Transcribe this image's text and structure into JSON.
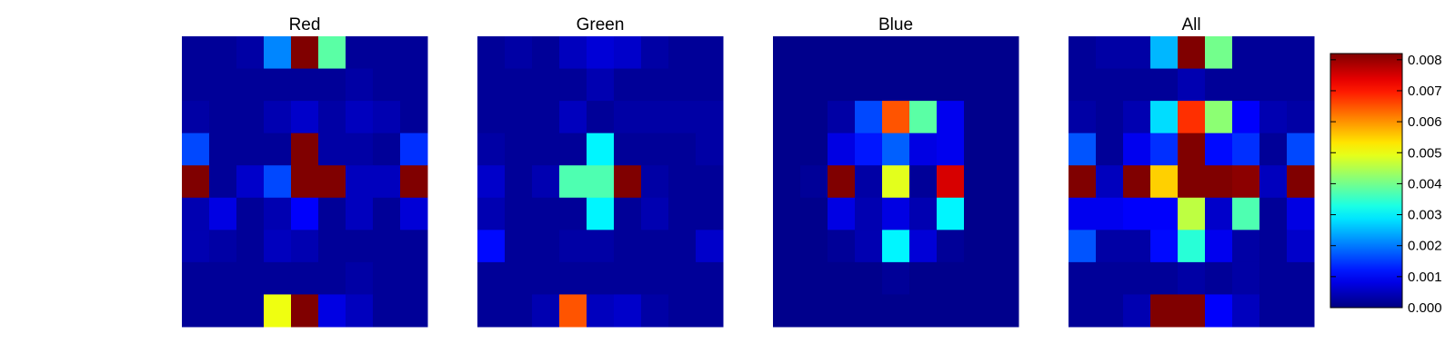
{
  "chart_data": {
    "type": "heatmap",
    "colormap": "jet",
    "colorbar": {
      "range": [
        0,
        0.0082
      ],
      "ticks": [
        "0.000",
        "0.001",
        "0.002",
        "0.003",
        "0.004",
        "0.005",
        "0.006",
        "0.007",
        "0.008"
      ]
    },
    "panels": [
      {
        "title": "Red",
        "values": [
          [
            0.0002,
            0.0002,
            0.0003,
            0.0021,
            0.0085,
            0.0038,
            0.0002,
            0.0002,
            0.0002
          ],
          [
            0.0002,
            0.0002,
            0.0002,
            0.0002,
            0.0002,
            0.0002,
            0.0003,
            0.0002,
            0.0002
          ],
          [
            0.0003,
            0.0002,
            0.0002,
            0.0004,
            0.0006,
            0.0003,
            0.0005,
            0.0004,
            0.0002
          ],
          [
            0.0016,
            0.0002,
            0.0002,
            0.0002,
            0.0085,
            0.0003,
            0.0003,
            0.0002,
            0.0014
          ],
          [
            0.0085,
            0.0002,
            0.0006,
            0.0016,
            0.0085,
            0.0085,
            0.0005,
            0.0005,
            0.0085
          ],
          [
            0.0004,
            0.0008,
            0.0002,
            0.0004,
            0.001,
            0.0002,
            0.0005,
            0.0002,
            0.0007
          ],
          [
            0.0004,
            0.0003,
            0.0002,
            0.0005,
            0.0004,
            0.0002,
            0.0002,
            0.0002,
            0.0002
          ],
          [
            0.0002,
            0.0002,
            0.0002,
            0.0002,
            0.0002,
            0.0002,
            0.0003,
            0.0002,
            0.0002
          ],
          [
            0.0002,
            0.0002,
            0.0002,
            0.005,
            0.0085,
            0.0008,
            0.0005,
            0.0002,
            0.0002
          ]
        ]
      },
      {
        "title": "Green",
        "values": [
          [
            0.0002,
            0.0003,
            0.0002,
            0.0005,
            0.0007,
            0.0006,
            0.0003,
            0.0002,
            0.0002
          ],
          [
            0.0002,
            0.0002,
            0.0002,
            0.0002,
            0.0004,
            0.0002,
            0.0002,
            0.0002,
            0.0002
          ],
          [
            0.0002,
            0.0002,
            0.0002,
            0.0005,
            0.0002,
            0.0003,
            0.0003,
            0.0003,
            0.0003
          ],
          [
            0.0003,
            0.0002,
            0.0002,
            0.0002,
            0.003,
            0.0002,
            0.0002,
            0.0002,
            0.0003
          ],
          [
            0.0006,
            0.0002,
            0.0004,
            0.0037,
            0.0037,
            0.0085,
            0.0003,
            0.0002,
            0.0002
          ],
          [
            0.0004,
            0.0002,
            0.0002,
            0.0002,
            0.003,
            0.0002,
            0.0004,
            0.0002,
            0.0002
          ],
          [
            0.0011,
            0.0002,
            0.0002,
            0.0003,
            0.0003,
            0.0002,
            0.0002,
            0.0002,
            0.0006
          ],
          [
            0.0002,
            0.0002,
            0.0002,
            0.0002,
            0.0002,
            0.0002,
            0.0002,
            0.0002,
            0.0002
          ],
          [
            0.0002,
            0.0002,
            0.0004,
            0.0065,
            0.0005,
            0.0006,
            0.0003,
            0.0002,
            0.0002
          ]
        ]
      },
      {
        "title": "Blue",
        "values": [
          [
            0.0001,
            0.0001,
            0.0001,
            0.0001,
            0.0001,
            0.0001,
            0.0001,
            0.0001,
            0.0001
          ],
          [
            0.0001,
            0.0001,
            0.0001,
            0.0001,
            0.0001,
            0.0001,
            0.0001,
            0.0001,
            0.0001
          ],
          [
            0.0001,
            0.0001,
            0.0003,
            0.0016,
            0.0065,
            0.0038,
            0.0009,
            0.0001,
            0.0001
          ],
          [
            0.0001,
            0.0001,
            0.0008,
            0.0012,
            0.0018,
            0.0008,
            0.0009,
            0.0001,
            0.0001
          ],
          [
            0.0001,
            0.0002,
            0.0085,
            0.0003,
            0.0049,
            0.0002,
            0.0075,
            0.0001,
            0.0001
          ],
          [
            0.0001,
            0.0001,
            0.0008,
            0.0004,
            0.0008,
            0.0004,
            0.003,
            0.0001,
            0.0001
          ],
          [
            0.0001,
            0.0001,
            0.0002,
            0.0004,
            0.003,
            0.0007,
            0.0002,
            0.0001,
            0.0001
          ],
          [
            0.0001,
            0.0001,
            0.0001,
            0.0001,
            0.0002,
            0.0001,
            0.0001,
            0.0001,
            0.0001
          ],
          [
            0.0001,
            0.0001,
            0.0001,
            0.0001,
            0.0001,
            0.0001,
            0.0001,
            0.0001,
            0.0001
          ]
        ]
      },
      {
        "title": "All",
        "values": [
          [
            0.0002,
            0.0003,
            0.0003,
            0.0025,
            0.0085,
            0.004,
            0.0002,
            0.0002,
            0.0002
          ],
          [
            0.0002,
            0.0002,
            0.0002,
            0.0002,
            0.0004,
            0.0002,
            0.0002,
            0.0002,
            0.0002
          ],
          [
            0.0003,
            0.0002,
            0.0004,
            0.0028,
            0.0068,
            0.0042,
            0.001,
            0.0004,
            0.0003
          ],
          [
            0.0017,
            0.0002,
            0.0009,
            0.0014,
            0.0085,
            0.0011,
            0.0014,
            0.0002,
            0.0016
          ],
          [
            0.0085,
            0.0005,
            0.0085,
            0.0055,
            0.0085,
            0.0085,
            0.0081,
            0.0005,
            0.0085
          ],
          [
            0.0009,
            0.0009,
            0.001,
            0.001,
            0.0046,
            0.0006,
            0.0037,
            0.0002,
            0.0008
          ],
          [
            0.0017,
            0.0003,
            0.0003,
            0.0011,
            0.0034,
            0.0009,
            0.0003,
            0.0002,
            0.0006
          ],
          [
            0.0002,
            0.0002,
            0.0002,
            0.0002,
            0.0003,
            0.0002,
            0.0003,
            0.0002,
            0.0002
          ],
          [
            0.0002,
            0.0002,
            0.0004,
            0.0085,
            0.0085,
            0.001,
            0.0005,
            0.0002,
            0.0002
          ]
        ]
      }
    ]
  }
}
